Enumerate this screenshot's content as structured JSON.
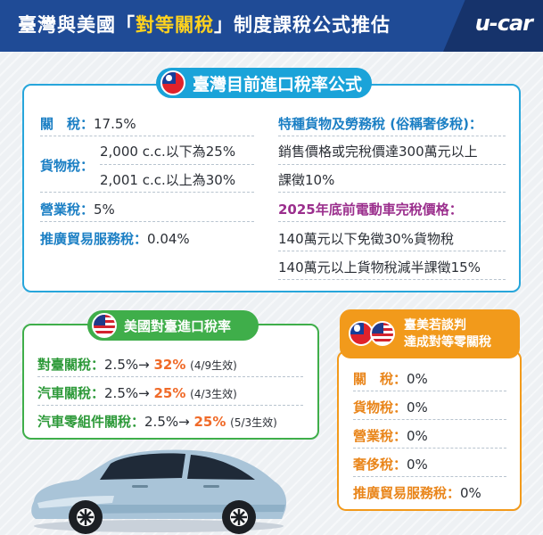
{
  "header": {
    "title_pre": "臺灣與美國「",
    "title_highlight": "對等關稅",
    "title_post": "」制度課稅公式推估",
    "logo": "u-car"
  },
  "taiwan": {
    "heading": "臺灣目前進口稅率公式",
    "tariff_label": "關　稅：",
    "tariff_value": "17.5%",
    "goods_label": "貨物稅：",
    "goods_value_1": "2,000 c.c.以下為25%",
    "goods_value_2": "2,001 c.c.以上為30%",
    "business_label": "營業稅：",
    "business_value": "5%",
    "trade_label": "推廣貿易服務稅：",
    "trade_value": "0.04%",
    "special_label": "特種貨物及勞務稅 (俗稱奢侈稅)：",
    "special_line_1": "銷售價格或完稅價達300萬元以上",
    "special_line_2": "課徵10%",
    "ev_label": "2025年底前電動車完稅價格：",
    "ev_line_1": "140萬元以下免徵30%貨物稅",
    "ev_line_2": "140萬元以上貨物稅減半課徵15%"
  },
  "usa": {
    "heading": "美國對臺進口稅率",
    "rows": [
      {
        "label": "對臺關稅：",
        "from": "2.5%→ ",
        "to": "32%",
        "note": "(4/9生效)"
      },
      {
        "label": "汽車關稅：",
        "from": "2.5%→ ",
        "to": "25%",
        "note": "(4/3生效)"
      },
      {
        "label": "汽車零組件關稅：",
        "from": "2.5%→ ",
        "to": "25%",
        "note": "(5/3生效)"
      }
    ]
  },
  "zero": {
    "heading_1": "臺美若談判",
    "heading_2": "達成對等零關稅",
    "rows": [
      {
        "label": "關　稅：",
        "value": "0%"
      },
      {
        "label": "貨物稅：",
        "value": "0%"
      },
      {
        "label": "營業稅：",
        "value": "0%"
      },
      {
        "label": "奢侈稅：",
        "value": "0%"
      },
      {
        "label": "推廣貿易服務稅：",
        "value": "0%"
      }
    ]
  },
  "colors": {
    "header_bg": "#1f4b96",
    "taiwan_accent": "#1aa3d9",
    "usa_accent": "#3fae4a",
    "zero_accent": "#f29a1b",
    "highlight_orange": "#f06a28",
    "ev_purple": "#9b2f8d"
  }
}
